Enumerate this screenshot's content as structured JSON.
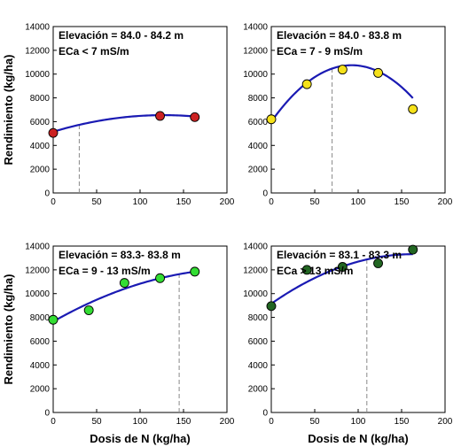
{
  "chart_data": {
    "layout": "2x2 panels",
    "shared_xlabel": "Dosis de N (kg/ha)",
    "shared_ylabel": "Rendimiento (kg/ha)",
    "panels": [
      {
        "type": "scatter",
        "annotation": [
          "Elevación =  84.0 - 84.2 m",
          "ECa < 7 mS/m"
        ],
        "marker_color": "#cc2222",
        "fit_color": "#1a1ab3",
        "x": [
          0,
          123,
          163
        ],
        "y": [
          5050,
          6480,
          6380
        ],
        "fit": {
          "a": 5150,
          "b": 22.0,
          "c": -0.0866,
          "x_range": [
            0,
            163
          ]
        },
        "optimum_x": 30,
        "xlim": [
          0,
          200
        ],
        "ylim": [
          0,
          14000
        ],
        "xticks": [
          0,
          50,
          100,
          150,
          200
        ],
        "yticks": [
          0,
          2000,
          4000,
          6000,
          8000,
          10000,
          12000,
          14000
        ],
        "ylabel": "Rendimiento (kg/ha)",
        "xlabel": ""
      },
      {
        "type": "scatter",
        "annotation": [
          "Elevación = 84.0 - 83.8 m",
          "ECa = 7 - 9 mS/m"
        ],
        "marker_color": "#f5e11a",
        "fit_color": "#1a1ab3",
        "x": [
          0,
          41,
          82,
          123,
          163
        ],
        "y": [
          6200,
          9150,
          10380,
          10100,
          7050
        ],
        "fit": {
          "a": 6000,
          "b": 102.7,
          "c": -0.5555,
          "x_range": [
            0,
            163
          ]
        },
        "optimum_x": 70,
        "xlim": [
          0,
          200
        ],
        "ylim": [
          0,
          14000
        ],
        "xticks": [
          0,
          50,
          100,
          150,
          200
        ],
        "yticks": [
          0,
          2000,
          4000,
          6000,
          8000,
          10000,
          12000,
          14000
        ],
        "ylabel": "",
        "xlabel": ""
      },
      {
        "type": "scatter",
        "annotation": [
          "Elevación = 83.3- 83.8 m",
          "ECa = 9 - 13 mS/m"
        ],
        "marker_color": "#33dd33",
        "fit_color": "#1a1ab3",
        "x": [
          0,
          41,
          82,
          123,
          163
        ],
        "y": [
          7800,
          8600,
          10900,
          11300,
          11850
        ],
        "fit": {
          "a": 7650,
          "b": 41.45,
          "c": -0.0963,
          "x_range": [
            0,
            163
          ]
        },
        "optimum_x": 145,
        "xlim": [
          0,
          200
        ],
        "ylim": [
          0,
          14000
        ],
        "xticks": [
          0,
          50,
          100,
          150,
          200
        ],
        "yticks": [
          0,
          2000,
          4000,
          6000,
          8000,
          10000,
          12000,
          14000
        ],
        "ylabel": "Rendimiento (kg/ha)",
        "xlabel": "Dosis de N (kg/ha)"
      },
      {
        "type": "scatter",
        "annotation": [
          "Elevación = 83.1 - 83.3 m",
          "ECa > 13 mS/m"
        ],
        "marker_color": "#226622",
        "fit_color": "#1a1ab3",
        "x": [
          0,
          41,
          82,
          123,
          163
        ],
        "y": [
          8950,
          12000,
          12250,
          12550,
          13700
        ],
        "fit": {
          "a": 9150,
          "b": 51.1,
          "c": -0.1567,
          "x_range": [
            0,
            163
          ]
        },
        "optimum_x": 110,
        "xlim": [
          0,
          200
        ],
        "ylim": [
          0,
          14000
        ],
        "xticks": [
          0,
          50,
          100,
          150,
          200
        ],
        "yticks": [
          0,
          2000,
          4000,
          6000,
          8000,
          10000,
          12000,
          14000
        ],
        "ylabel": "",
        "xlabel": "Dosis de N (kg/ha)"
      }
    ]
  }
}
